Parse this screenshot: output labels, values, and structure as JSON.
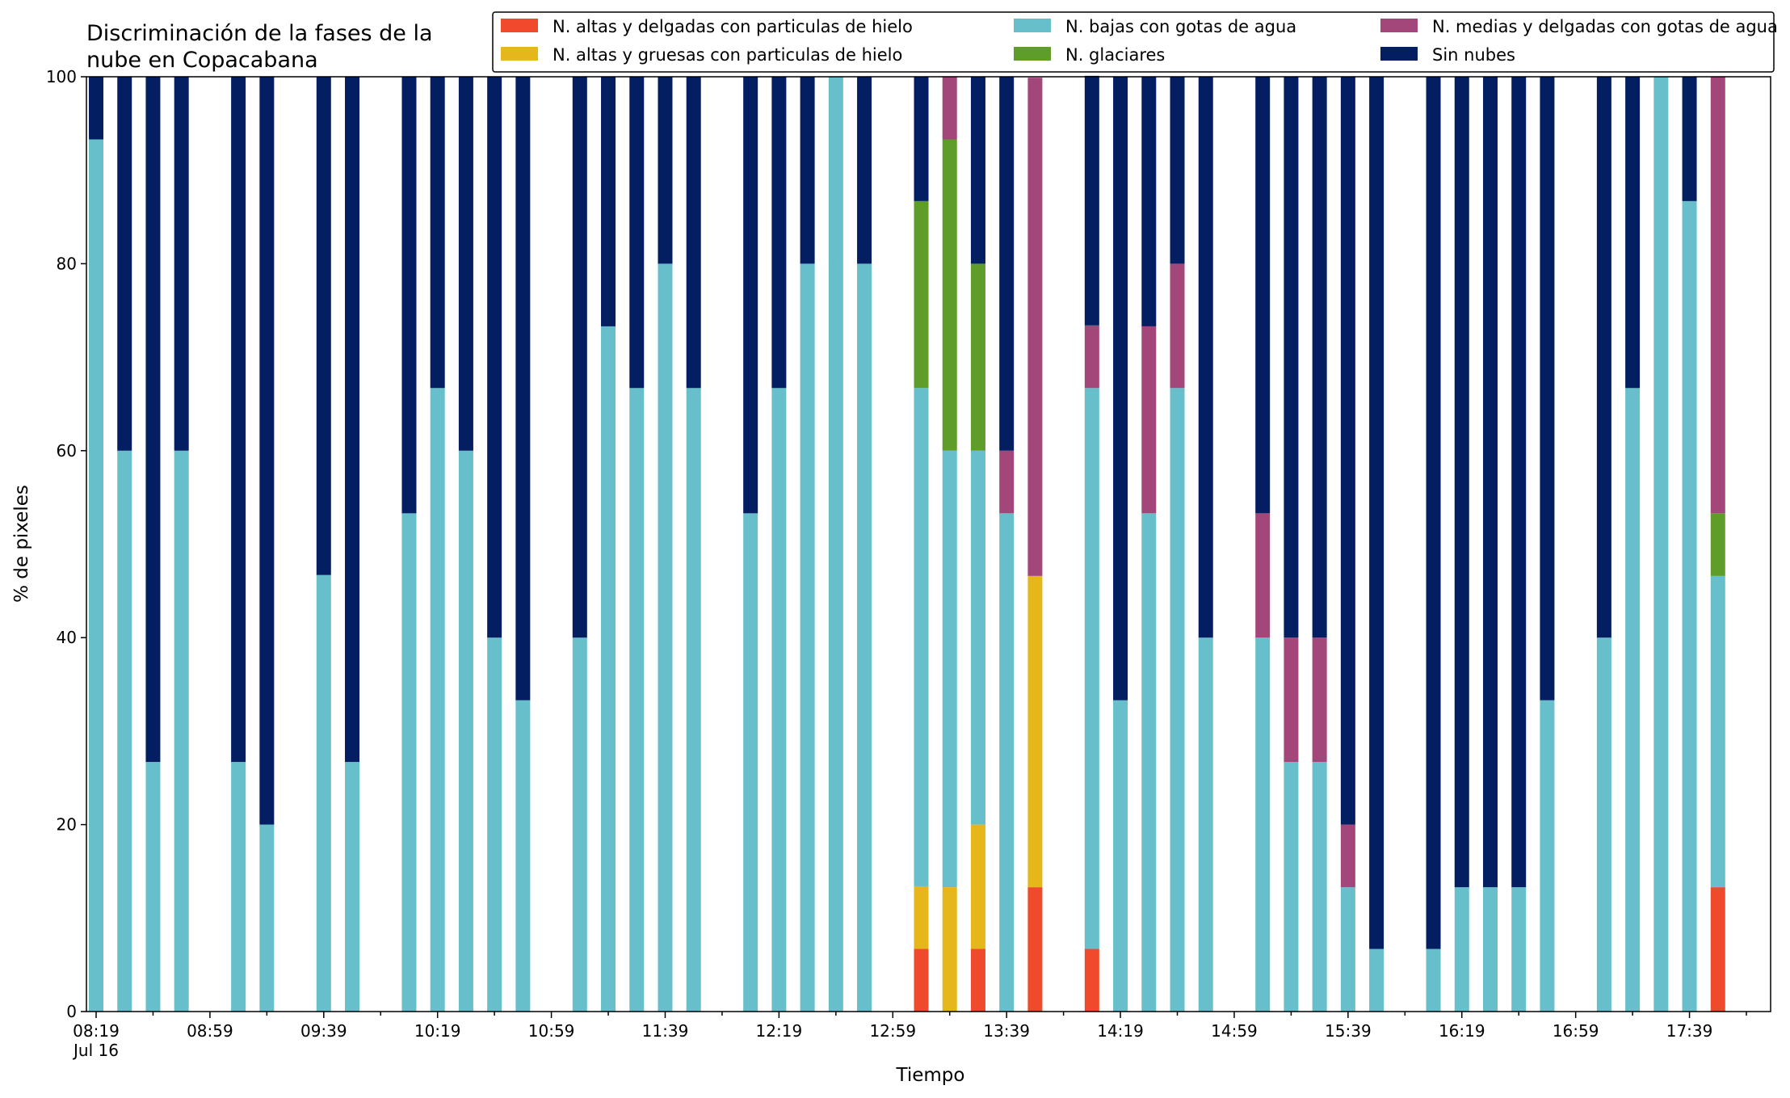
{
  "chart_data": {
    "type": "bar",
    "stacked": true,
    "title_lines": [
      "Discriminación de la fases de la",
      "nube en Copacabana"
    ],
    "xlabel": "Tiempo",
    "ylabel": "% de pixeles",
    "ylim": [
      0,
      100
    ],
    "yticks": [
      0,
      20,
      40,
      60,
      80,
      100
    ],
    "x_domain": [
      "08:19",
      "17:59"
    ],
    "x_major_ticks": [
      "08:19",
      "08:59",
      "09:39",
      "10:19",
      "10:59",
      "11:39",
      "12:19",
      "12:59",
      "13:39",
      "14:19",
      "14:59",
      "15:39",
      "16:19",
      "16:59",
      "17:39"
    ],
    "x_date_label": "Jul 16",
    "grid": false,
    "legend": {
      "placement": "top-right",
      "columns": 3
    },
    "series": [
      {
        "name": "N. altas y delgadas con particulas de hielo",
        "color": "#ee4a2b"
      },
      {
        "name": "N. altas y gruesas con particulas de hielo",
        "color": "#e6b71b"
      },
      {
        "name": "N. bajas con gotas de agua",
        "color": "#66bfcb"
      },
      {
        "name": "N. glaciares",
        "color": "#5f9d2b"
      },
      {
        "name": "N. medias y delgadas con gotas de agua",
        "color": "#a3467a"
      },
      {
        "name": "Sin nubes",
        "color": "#031e61"
      }
    ],
    "stack_order": [
      "N. altas y delgadas con particulas de hielo",
      "N. altas y gruesas con particulas de hielo",
      "N. bajas con gotas de agua",
      "N. glaciares",
      "N. medias y delgadas con gotas de agua",
      "Sin nubes"
    ],
    "bars": [
      {
        "time": "08:19",
        "values": [
          0,
          0,
          93.3,
          0,
          0,
          6.7
        ]
      },
      {
        "time": "08:29",
        "values": [
          0,
          0,
          60,
          0,
          0,
          40
        ]
      },
      {
        "time": "08:39",
        "values": [
          0,
          0,
          26.7,
          0,
          0,
          73.3
        ]
      },
      {
        "time": "08:49",
        "values": [
          0,
          0,
          60,
          0,
          0,
          40
        ]
      },
      {
        "time": "09:09",
        "values": [
          0,
          0,
          26.7,
          0,
          0,
          73.3
        ]
      },
      {
        "time": "09:19",
        "values": [
          0,
          0,
          20,
          0,
          0,
          80
        ]
      },
      {
        "time": "09:39",
        "values": [
          0,
          0,
          46.7,
          0,
          0,
          53.3
        ]
      },
      {
        "time": "09:49",
        "values": [
          0,
          0,
          26.7,
          0,
          0,
          73.3
        ]
      },
      {
        "time": "10:09",
        "values": [
          0,
          0,
          53.3,
          0,
          0,
          46.7
        ]
      },
      {
        "time": "10:19",
        "values": [
          0,
          0,
          66.7,
          0,
          0,
          33.3
        ]
      },
      {
        "time": "10:29",
        "values": [
          0,
          0,
          60,
          0,
          0,
          40
        ]
      },
      {
        "time": "10:39",
        "values": [
          0,
          0,
          40,
          0,
          0,
          60
        ]
      },
      {
        "time": "10:49",
        "values": [
          0,
          0,
          33.3,
          0,
          0,
          66.7
        ]
      },
      {
        "time": "11:09",
        "values": [
          0,
          0,
          40,
          0,
          0,
          60
        ]
      },
      {
        "time": "11:19",
        "values": [
          0,
          0,
          73.3,
          0,
          0,
          26.7
        ]
      },
      {
        "time": "11:29",
        "values": [
          0,
          0,
          66.7,
          0,
          0,
          33.3
        ]
      },
      {
        "time": "11:39",
        "values": [
          0,
          0,
          80,
          0,
          0,
          20
        ]
      },
      {
        "time": "11:49",
        "values": [
          0,
          0,
          66.7,
          0,
          0,
          33.3
        ]
      },
      {
        "time": "12:09",
        "values": [
          0,
          0,
          53.3,
          0,
          0,
          46.7
        ]
      },
      {
        "time": "12:19",
        "values": [
          0,
          0,
          66.7,
          0,
          0,
          33.3
        ]
      },
      {
        "time": "12:29",
        "values": [
          0,
          0,
          80,
          0,
          0,
          20
        ]
      },
      {
        "time": "12:39",
        "values": [
          0,
          0,
          100,
          0,
          0,
          0
        ]
      },
      {
        "time": "12:49",
        "values": [
          0,
          0,
          80,
          0,
          0,
          20
        ]
      },
      {
        "time": "13:09",
        "values": [
          6.7,
          6.7,
          53.3,
          20,
          0,
          13.3
        ]
      },
      {
        "time": "13:19",
        "values": [
          0,
          13.3,
          46.7,
          33.3,
          6.7,
          0
        ]
      },
      {
        "time": "13:29",
        "values": [
          6.7,
          13.3,
          40,
          20,
          0,
          20
        ]
      },
      {
        "time": "13:39",
        "values": [
          0,
          0,
          53.3,
          0,
          6.7,
          40
        ]
      },
      {
        "time": "13:49",
        "values": [
          13.3,
          33.3,
          0,
          0,
          53.3,
          0
        ]
      },
      {
        "time": "14:09",
        "values": [
          6.7,
          0,
          60,
          0,
          6.7,
          26.7
        ]
      },
      {
        "time": "14:19",
        "values": [
          0,
          0,
          33.3,
          0,
          0,
          66.7
        ]
      },
      {
        "time": "14:29",
        "values": [
          0,
          0,
          53.3,
          0,
          20,
          26.7
        ]
      },
      {
        "time": "14:39",
        "values": [
          0,
          0,
          66.7,
          0,
          13.3,
          20
        ]
      },
      {
        "time": "14:49",
        "values": [
          0,
          0,
          40,
          0,
          0,
          60
        ]
      },
      {
        "time": "15:09",
        "values": [
          0,
          0,
          40,
          0,
          13.3,
          46.7
        ]
      },
      {
        "time": "15:19",
        "values": [
          0,
          0,
          26.7,
          0,
          13.3,
          60
        ]
      },
      {
        "time": "15:29",
        "values": [
          0,
          0,
          26.7,
          0,
          13.3,
          60
        ]
      },
      {
        "time": "15:39",
        "values": [
          0,
          0,
          13.3,
          0,
          6.7,
          80
        ]
      },
      {
        "time": "15:49",
        "values": [
          0,
          0,
          6.7,
          0,
          0,
          93.3
        ]
      },
      {
        "time": "16:09",
        "values": [
          0,
          0,
          6.7,
          0,
          0,
          93.3
        ]
      },
      {
        "time": "16:19",
        "values": [
          0,
          0,
          13.3,
          0,
          0,
          86.7
        ]
      },
      {
        "time": "16:29",
        "values": [
          0,
          0,
          13.3,
          0,
          0,
          86.7
        ]
      },
      {
        "time": "16:39",
        "values": [
          0,
          0,
          13.3,
          0,
          0,
          86.7
        ]
      },
      {
        "time": "16:49",
        "values": [
          0,
          0,
          33.3,
          0,
          0,
          66.7
        ]
      },
      {
        "time": "17:09",
        "values": [
          0,
          0,
          40,
          0,
          0,
          60
        ]
      },
      {
        "time": "17:19",
        "values": [
          0,
          0,
          66.7,
          0,
          0,
          33.3
        ]
      },
      {
        "time": "17:29",
        "values": [
          0,
          0,
          100,
          0,
          0,
          0
        ]
      },
      {
        "time": "17:39",
        "values": [
          0,
          0,
          86.7,
          0,
          0,
          13.3
        ]
      },
      {
        "time": "17:49",
        "values": [
          13.3,
          0,
          33.3,
          6.7,
          46.7,
          0
        ]
      }
    ]
  }
}
